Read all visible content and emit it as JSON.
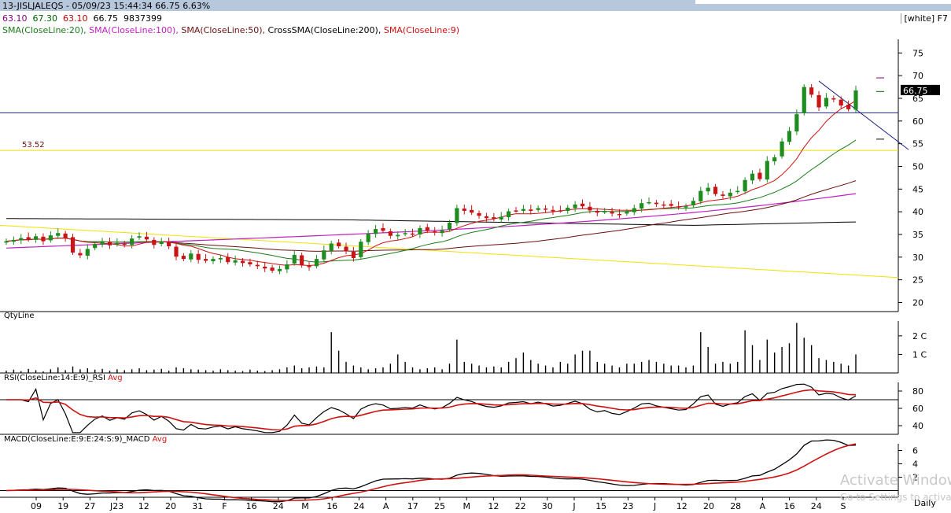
{
  "header": {
    "title": "13-JISLJALEQS - 05/09/23 15:44:34 66.75 6.63%",
    "open": "63.10",
    "high": "67.30",
    "low": "63.10",
    "close": "66.75",
    "volume": "9837399",
    "theme_label": "[white] F7"
  },
  "legend": {
    "sma20": "SMA(CloseLine:20),",
    "sma100": "SMA(CloseLine:100),",
    "sma50": "SMA(CloseLine:50),",
    "cross200": "CrossSMA(CloseLine:200),",
    "sma9": "SMA(CloseLine:9)"
  },
  "panels": {
    "qty": {
      "label": "QtyLine",
      "ticks": [
        "2 C",
        "1 C"
      ]
    },
    "rsi": {
      "label": "RSI(CloseLine:14:E:9)_RSI",
      "avg": "Avg",
      "ticks": [
        "80",
        "60",
        "40"
      ]
    },
    "macd": {
      "label": "MACD(CloseLine:E:9:E:24:S:9)_MACD",
      "avg": "Avg",
      "ticks": [
        "6",
        "4",
        "2"
      ]
    }
  },
  "watermark": {
    "line1": "Activate Windows",
    "line2": "Go to Settings to activate"
  },
  "colors": {
    "up": "#1e8c1e",
    "down": "#c81414",
    "sma20": "#1a7a1a",
    "sma9": "#d01010",
    "sma50": "#6b0f0f",
    "sma100": "#c020c0",
    "sma200": "#000000",
    "hline": "#1a237e",
    "yellow": "#f0e000",
    "trend": "#1a237e",
    "rsi": "#000000",
    "rsi_avg": "#d01010"
  },
  "chart_data": {
    "type": "candlestick",
    "title": "13-JISLJALEQS",
    "y_ticks": [
      75,
      70,
      65,
      60,
      55,
      50,
      45,
      40,
      35,
      30,
      25,
      20
    ],
    "ylim": [
      18,
      78
    ],
    "last_price": "66.75",
    "price_labels": {
      "support": "53.52"
    },
    "x_labels": [
      "09",
      "19",
      "27",
      "J23",
      "12",
      "20",
      "31",
      "F",
      "16",
      "24",
      "M",
      "16",
      "24",
      "A",
      "17",
      "25",
      "M",
      "12",
      "22",
      "30",
      "J",
      "15",
      "23",
      "J",
      "12",
      "20",
      "28",
      "A",
      "16",
      "24",
      "S",
      "Daily"
    ],
    "closes": [
      33.5,
      33.8,
      34.2,
      33.9,
      34.6,
      33.5,
      34.8,
      35.3,
      34.2,
      31.0,
      30.4,
      31.8,
      32.9,
      33.5,
      32.6,
      33.1,
      32.8,
      34.1,
      34.6,
      33.9,
      32.7,
      33.5,
      32.4,
      30.1,
      29.6,
      30.8,
      29.4,
      29.2,
      29.6,
      29.8,
      28.9,
      29.3,
      28.7,
      28.4,
      28.0,
      27.5,
      27.0,
      27.4,
      28.4,
      30.5,
      28.3,
      27.8,
      29.6,
      31.5,
      33.0,
      32.4,
      31.3,
      29.8,
      33.4,
      35.2,
      36.2,
      35.8,
      34.7,
      34.9,
      35.3,
      35.1,
      36.4,
      35.8,
      35.4,
      35.9,
      37.6,
      40.8,
      40.2,
      39.8,
      39.1,
      38.6,
      38.4,
      38.9,
      40.1,
      40.3,
      40.6,
      40.2,
      40.8,
      40.5,
      40.1,
      40.3,
      40.9,
      41.6,
      41.2,
      40.3,
      39.8,
      40.1,
      39.6,
      39.4,
      40.0,
      40.8,
      41.9,
      42.1,
      41.7,
      41.5,
      41.3,
      41.1,
      41.2,
      42.4,
      44.6,
      45.3,
      43.9,
      43.5,
      44.2,
      44.6,
      47.0,
      48.4,
      47.2,
      51.2,
      52.0,
      55.5,
      57.8,
      61.5,
      67.5,
      65.8,
      63.0,
      65.1,
      64.8,
      63.4,
      62.6,
      66.75
    ],
    "volume": [
      0.12,
      0.18,
      0.1,
      0.22,
      0.15,
      0.08,
      0.2,
      0.3,
      0.15,
      0.35,
      0.2,
      0.25,
      0.18,
      0.22,
      0.12,
      0.2,
      0.15,
      0.2,
      0.25,
      0.15,
      0.18,
      0.22,
      0.12,
      0.3,
      0.25,
      0.2,
      0.18,
      0.15,
      0.12,
      0.2,
      0.15,
      0.12,
      0.1,
      0.18,
      0.12,
      0.1,
      0.15,
      0.2,
      0.3,
      0.4,
      0.25,
      0.3,
      0.35,
      0.3,
      2.2,
      1.2,
      0.6,
      0.4,
      0.3,
      0.2,
      0.25,
      0.3,
      0.5,
      1.0,
      0.6,
      0.3,
      0.2,
      0.25,
      0.3,
      0.2,
      0.5,
      1.8,
      0.6,
      0.5,
      0.4,
      0.3,
      0.35,
      0.3,
      0.6,
      0.8,
      1.1,
      0.7,
      0.5,
      0.4,
      0.3,
      0.6,
      0.5,
      1.0,
      1.2,
      1.2,
      0.6,
      0.5,
      0.4,
      0.3,
      0.5,
      0.5,
      0.6,
      0.7,
      0.6,
      0.5,
      0.4,
      0.4,
      0.3,
      0.4,
      2.2,
      1.4,
      0.5,
      0.6,
      0.5,
      0.6,
      2.3,
      1.5,
      0.7,
      1.8,
      1.1,
      1.4,
      1.6,
      2.7,
      1.9,
      1.5,
      0.8,
      0.7,
      0.6,
      0.5,
      0.4,
      1.0
    ],
    "sma200_range": [
      38.5,
      37.8
    ],
    "sma100_range": [
      34.0,
      44.0
    ],
    "support_line": 61.8,
    "yellow_horizontal": 53.52,
    "yellow_trend": [
      37.0,
      25.5
    ],
    "rsi_ylim": [
      30,
      90
    ],
    "rsi_levels": [
      70,
      30
    ],
    "macd_ylim": [
      -1,
      7
    ]
  }
}
